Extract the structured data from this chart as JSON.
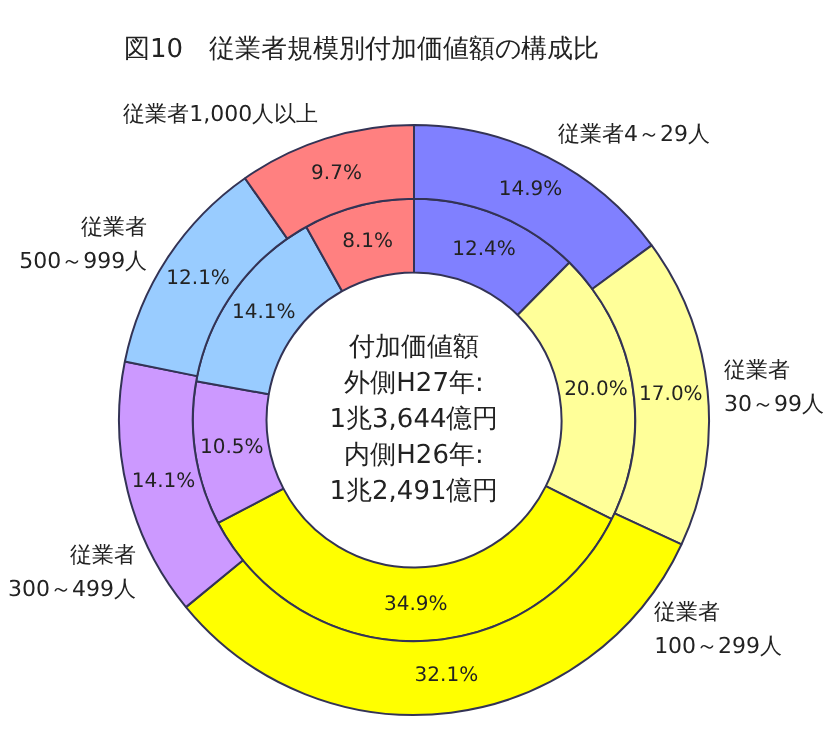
{
  "chart_data": {
    "type": "donut",
    "title": "図10　従業者規模別付加価値額の構成比",
    "categories": [
      "従業者4～29人",
      "従業者\n30～99人",
      "従業者\n100～299人",
      "従業者\n300～499人",
      "従業者\n500～999人",
      "従業者1,000人以上"
    ],
    "colors": [
      "#8080ff",
      "#ffff99",
      "#ffff00",
      "#cc99ff",
      "#99ccff",
      "#ff8080"
    ],
    "series": [
      {
        "values": [
          14.9,
          17.0,
          32.1,
          14.1,
          12.1,
          9.7
        ],
        "value_labels": [
          "14.9%",
          "17.0%",
          "32.1%",
          "14.1%",
          "12.1%",
          "9.7%"
        ]
      },
      {
        "values": [
          12.4,
          20.0,
          34.9,
          10.5,
          14.1,
          8.1
        ],
        "value_labels": [
          "12.4%",
          "20.0%",
          "34.9%",
          "10.5%",
          "14.1%",
          "8.1%"
        ]
      }
    ],
    "annotations": [
      "付加価値額",
      "外側H27年:",
      "1兆3,644億円",
      "内側H26年:",
      "1兆2,491億円"
    ],
    "legend": false
  }
}
